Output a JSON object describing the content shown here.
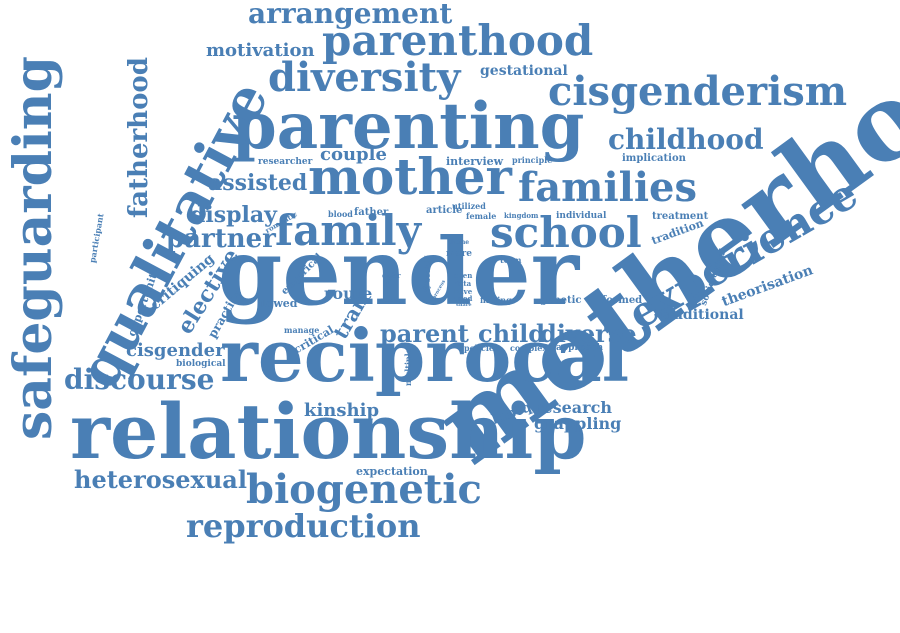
{
  "wordcloud": {
    "color": "#4a7fb5",
    "words": [
      {
        "id": "motherhood",
        "text": "motherhood"
      },
      {
        "id": "gender",
        "text": "gender"
      },
      {
        "id": "reciprocal",
        "text": "reciprocal"
      },
      {
        "id": "relationship",
        "text": "relationship"
      },
      {
        "id": "parenting",
        "text": "parenting"
      },
      {
        "id": "mother",
        "text": "mother"
      },
      {
        "id": "family",
        "text": "family"
      },
      {
        "id": "school",
        "text": "school"
      },
      {
        "id": "families",
        "text": "families"
      },
      {
        "id": "qualitative",
        "text": "qualitative"
      },
      {
        "id": "safeguarding",
        "text": "safeguarding"
      },
      {
        "id": "experience",
        "text": "experience"
      },
      {
        "id": "cisgenderism",
        "text": "cisgenderism"
      },
      {
        "id": "biogenetic",
        "text": "biogenetic"
      },
      {
        "id": "parenthood",
        "text": "parenthood"
      },
      {
        "id": "diversity",
        "text": "diversity"
      },
      {
        "id": "arrangement",
        "text": "arrangement"
      },
      {
        "id": "reproduction",
        "text": "reproduction"
      },
      {
        "id": "fatherhood",
        "text": "fatherhood"
      },
      {
        "id": "childhood",
        "text": "childhood"
      },
      {
        "id": "discourse",
        "text": "discourse"
      },
      {
        "id": "heterosexual",
        "text": "heterosexual"
      },
      {
        "id": "parent",
        "text": "parent"
      },
      {
        "id": "child",
        "text": "child"
      },
      {
        "id": "diverse",
        "text": "diverse"
      },
      {
        "id": "partner",
        "text": "partner"
      },
      {
        "id": "assisted",
        "text": "assisted"
      },
      {
        "id": "display",
        "text": "display"
      },
      {
        "id": "couple",
        "text": "couple"
      },
      {
        "id": "motivation",
        "text": "motivation"
      },
      {
        "id": "gestational",
        "text": "gestational"
      },
      {
        "id": "kinship",
        "text": "kinship"
      },
      {
        "id": "cisgender",
        "text": "cisgender"
      },
      {
        "id": "elective",
        "text": "elective"
      },
      {
        "id": "research",
        "text": "research"
      },
      {
        "id": "grappling",
        "text": "grappling"
      },
      {
        "id": "traditional",
        "text": "traditional"
      },
      {
        "id": "theorisation",
        "text": "theorisation"
      },
      {
        "id": "route",
        "text": "route"
      },
      {
        "id": "tran",
        "text": "tran"
      },
      {
        "id": "expectation",
        "text": "expectation"
      },
      {
        "id": "lgbtq",
        "text": "lgbtq"
      },
      {
        "id": "critiquing",
        "text": "critiquing"
      },
      {
        "id": "opportunity",
        "text": "opportunity"
      },
      {
        "id": "participant",
        "text": "participant"
      },
      {
        "id": "practice",
        "text": "practice"
      },
      {
        "id": "flowed",
        "text": "flowed"
      },
      {
        "id": "empirical",
        "text": "empirical"
      },
      {
        "id": "critical",
        "text": "critical"
      },
      {
        "id": "manage",
        "text": "manage"
      },
      {
        "id": "biological",
        "text": "biological"
      },
      {
        "id": "researcher",
        "text": "researcher"
      },
      {
        "id": "interview",
        "text": "interview"
      },
      {
        "id": "principle",
        "text": "principle"
      },
      {
        "id": "implication",
        "text": "implication"
      },
      {
        "id": "utilized",
        "text": "utilized"
      },
      {
        "id": "romantic",
        "text": "romantic"
      },
      {
        "id": "blood",
        "text": "blood"
      },
      {
        "id": "father",
        "text": "father"
      },
      {
        "id": "article",
        "text": "article"
      },
      {
        "id": "female",
        "text": "female"
      },
      {
        "id": "kingdom",
        "text": "kingdom"
      },
      {
        "id": "individual",
        "text": "individual"
      },
      {
        "id": "treatment",
        "text": "treatment"
      },
      {
        "id": "tradition",
        "text": "tradition"
      },
      {
        "id": "sociological",
        "text": "sociological"
      },
      {
        "id": "formed",
        "text": "formed"
      },
      {
        "id": "genetic",
        "text": "genetic"
      },
      {
        "id": "finding",
        "text": "finding"
      },
      {
        "id": "term",
        "text": "term"
      },
      {
        "id": "policies",
        "text": "policies"
      },
      {
        "id": "complex",
        "text": "complex"
      },
      {
        "id": "approach",
        "text": "approach"
      },
      {
        "id": "multiple",
        "text": "multiple"
      },
      {
        "id": "offer",
        "text": "offer"
      },
      {
        "id": "oven",
        "text": "oven"
      },
      {
        "id": "data",
        "text": "data"
      },
      {
        "id": "have",
        "text": "have"
      },
      {
        "id": "used",
        "text": "used"
      },
      {
        "id": "share",
        "text": "share"
      },
      {
        "id": "more",
        "text": "more"
      },
      {
        "id": "social",
        "text": "social"
      },
      {
        "id": "theme",
        "text": "theme"
      },
      {
        "id": "study",
        "text": "study"
      },
      {
        "id": "young",
        "text": "young"
      },
      {
        "id": "time",
        "text": "time"
      },
      {
        "id": "role",
        "text": "role"
      },
      {
        "id": "daily",
        "text": "daily"
      },
      {
        "id": "process",
        "text": "process"
      }
    ]
  }
}
